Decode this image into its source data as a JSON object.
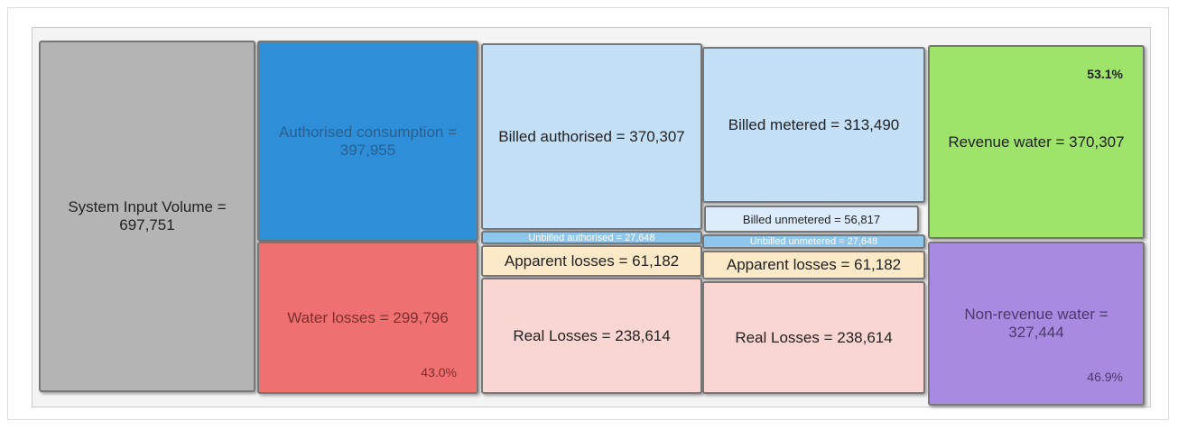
{
  "blocks": [
    {
      "label": "System Input Volume = 697,751"
    },
    {
      "label": "Authorised consumption = 397,955"
    },
    {
      "label": "Water losses = 299,796",
      "percent": "43.0%"
    },
    {
      "label": "Billed authorised = 370,307"
    },
    {
      "label": "Unbilled authorised = 27,648"
    },
    {
      "label": "Apparent losses = 61,182"
    },
    {
      "label": "Real Losses = 238,614"
    },
    {
      "label": "Billed metered = 313,490"
    },
    {
      "label": "Billed unmetered = 56,817"
    },
    {
      "label": "Unbilled unmetered = 27,648"
    },
    {
      "label": "Apparent losses = 61,182"
    },
    {
      "label": "Real Losses = 238,614"
    },
    {
      "label": "Revenue water = 370,307",
      "percent": "53.1%"
    },
    {
      "label": "Non-revenue water = 327,444",
      "percent": "46.9%"
    }
  ]
}
